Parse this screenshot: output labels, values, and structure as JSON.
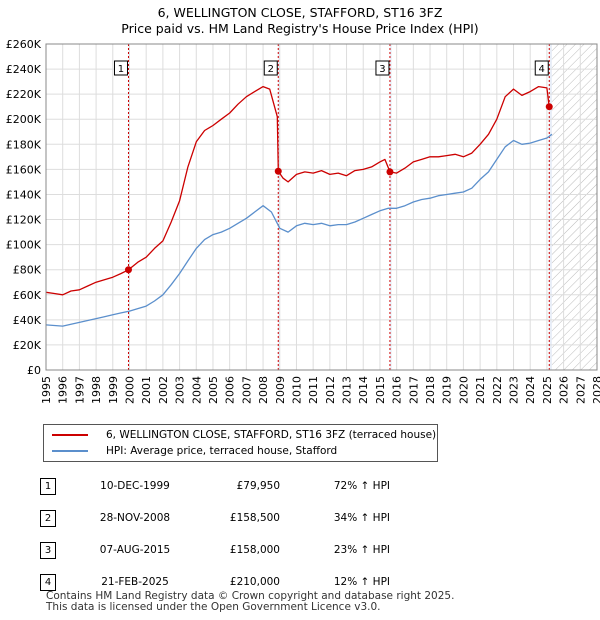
{
  "title": {
    "line1": "6, WELLINGTON CLOSE, STAFFORD, ST16 3FZ",
    "line2": "Price paid vs. HM Land Registry's House Price Index (HPI)"
  },
  "legend": {
    "property": "6, WELLINGTON CLOSE, STAFFORD, ST16 3FZ (terraced house)",
    "hpi": "HPI: Average price, terraced house, Stafford"
  },
  "colors": {
    "property": "#cc0000",
    "hpi": "#5b8fcc",
    "grid": "#dddddd",
    "shade": "#e8eef8"
  },
  "sales": [
    {
      "num": "1",
      "date": "10-DEC-1999",
      "price": "£79,950",
      "hpi": "72% ↑ HPI"
    },
    {
      "num": "2",
      "date": "28-NOV-2008",
      "price": "£158,500",
      "hpi": "34% ↑ HPI"
    },
    {
      "num": "3",
      "date": "07-AUG-2015",
      "price": "£158,000",
      "hpi": "23% ↑ HPI"
    },
    {
      "num": "4",
      "date": "21-FEB-2025",
      "price": "£210,000",
      "hpi": "12% ↑ HPI"
    }
  ],
  "footer": {
    "line1": "Contains HM Land Registry data © Crown copyright and database right 2025.",
    "line2": "This data is licensed under the Open Government Licence v3.0."
  },
  "chart_data": {
    "type": "line",
    "title": "Price paid vs. HM Land Registry's House Price Index (HPI)",
    "xlabel": "",
    "ylabel": "",
    "xlim": [
      1995,
      2028
    ],
    "ylim": [
      0,
      260000
    ],
    "y_ticks": [
      0,
      20000,
      40000,
      60000,
      80000,
      100000,
      120000,
      140000,
      160000,
      180000,
      200000,
      220000,
      240000,
      260000
    ],
    "y_tick_labels": [
      "£0",
      "£20K",
      "£40K",
      "£60K",
      "£80K",
      "£100K",
      "£120K",
      "£140K",
      "£160K",
      "£180K",
      "£200K",
      "£220K",
      "£240K",
      "£260K"
    ],
    "x_ticks": [
      1995,
      1996,
      1997,
      1998,
      1999,
      2000,
      2001,
      2002,
      2003,
      2004,
      2005,
      2006,
      2007,
      2008,
      2009,
      2010,
      2011,
      2012,
      2013,
      2014,
      2015,
      2016,
      2017,
      2018,
      2019,
      2020,
      2021,
      2022,
      2023,
      2024,
      2025,
      2026,
      2027,
      2028
    ],
    "shaded_ranges": [
      [
        1999.94,
        2000.0
      ],
      [
        2008.91,
        2009.0
      ],
      [
        2015.6,
        2015.7
      ],
      [
        2025.14,
        2025.3
      ]
    ],
    "hatch_from": 2025.3,
    "grid": true,
    "series": [
      {
        "name": "6, WELLINGTON CLOSE, STAFFORD, ST16 3FZ (terraced house)",
        "color": "#cc0000",
        "x": [
          1995.0,
          1995.5,
          1996.0,
          1996.5,
          1997.0,
          1997.5,
          1998.0,
          1998.5,
          1999.0,
          1999.5,
          1999.94,
          2000.5,
          2001.0,
          2001.5,
          2002.0,
          2002.5,
          2003.0,
          2003.5,
          2004.0,
          2004.5,
          2005.0,
          2005.5,
          2006.0,
          2006.5,
          2007.0,
          2007.5,
          2008.0,
          2008.4,
          2008.85,
          2008.91,
          2009.2,
          2009.5,
          2010.0,
          2010.5,
          2011.0,
          2011.5,
          2012.0,
          2012.5,
          2013.0,
          2013.5,
          2014.0,
          2014.5,
          2015.0,
          2015.3,
          2015.6,
          2016.0,
          2016.5,
          2017.0,
          2017.5,
          2018.0,
          2018.5,
          2019.0,
          2019.5,
          2020.0,
          2020.5,
          2021.0,
          2021.5,
          2022.0,
          2022.5,
          2023.0,
          2023.5,
          2024.0,
          2024.5,
          2025.0,
          2025.14,
          2025.3
        ],
        "values": [
          62000,
          61000,
          60000,
          63000,
          64000,
          67000,
          70000,
          72000,
          74000,
          77000,
          79950,
          86000,
          90000,
          97000,
          103000,
          118000,
          135000,
          162000,
          182000,
          191000,
          195000,
          200000,
          205000,
          212000,
          218000,
          222000,
          226000,
          224000,
          202000,
          158500,
          153000,
          150000,
          156000,
          158000,
          157000,
          159000,
          156000,
          157000,
          155000,
          159000,
          160000,
          162000,
          166000,
          168000,
          158000,
          157000,
          161000,
          166000,
          168000,
          170000,
          170000,
          171000,
          172000,
          170000,
          173000,
          180000,
          188000,
          200000,
          218000,
          224000,
          219000,
          222000,
          226000,
          225000,
          210000,
          208000
        ]
      },
      {
        "name": "HPI: Average price, terraced house, Stafford",
        "color": "#5b8fcc",
        "x": [
          1995.0,
          1995.5,
          1996.0,
          1996.5,
          1997.0,
          1997.5,
          1998.0,
          1998.5,
          1999.0,
          1999.5,
          2000.0,
          2000.5,
          2001.0,
          2001.5,
          2002.0,
          2002.5,
          2003.0,
          2003.5,
          2004.0,
          2004.5,
          2005.0,
          2005.5,
          2006.0,
          2006.5,
          2007.0,
          2007.5,
          2008.0,
          2008.5,
          2009.0,
          2009.5,
          2010.0,
          2010.5,
          2011.0,
          2011.5,
          2012.0,
          2012.5,
          2013.0,
          2013.5,
          2014.0,
          2014.5,
          2015.0,
          2015.5,
          2016.0,
          2016.5,
          2017.0,
          2017.5,
          2018.0,
          2018.5,
          2019.0,
          2019.5,
          2020.0,
          2020.5,
          2021.0,
          2021.5,
          2022.0,
          2022.5,
          2023.0,
          2023.5,
          2024.0,
          2024.5,
          2025.0,
          2025.3
        ],
        "values": [
          36000,
          35500,
          35000,
          36500,
          38000,
          39500,
          41000,
          42500,
          44000,
          45500,
          47000,
          49000,
          51000,
          55000,
          60000,
          68000,
          77000,
          87000,
          97000,
          104000,
          108000,
          110000,
          113000,
          117000,
          121000,
          126000,
          131000,
          126000,
          113000,
          110000,
          115000,
          117000,
          116000,
          117000,
          115000,
          116000,
          116000,
          118000,
          121000,
          124000,
          127000,
          129000,
          129000,
          131000,
          134000,
          136000,
          137000,
          139000,
          140000,
          141000,
          142000,
          145000,
          152000,
          158000,
          168000,
          178000,
          183000,
          180000,
          181000,
          183000,
          185000,
          188000
        ]
      }
    ],
    "markers": [
      {
        "label": "1",
        "x": 1999.94,
        "value": 79950
      },
      {
        "label": "2",
        "x": 2008.91,
        "value": 158500
      },
      {
        "label": "3",
        "x": 2015.6,
        "value": 158000
      },
      {
        "label": "4",
        "x": 2025.14,
        "value": 210000
      }
    ]
  }
}
